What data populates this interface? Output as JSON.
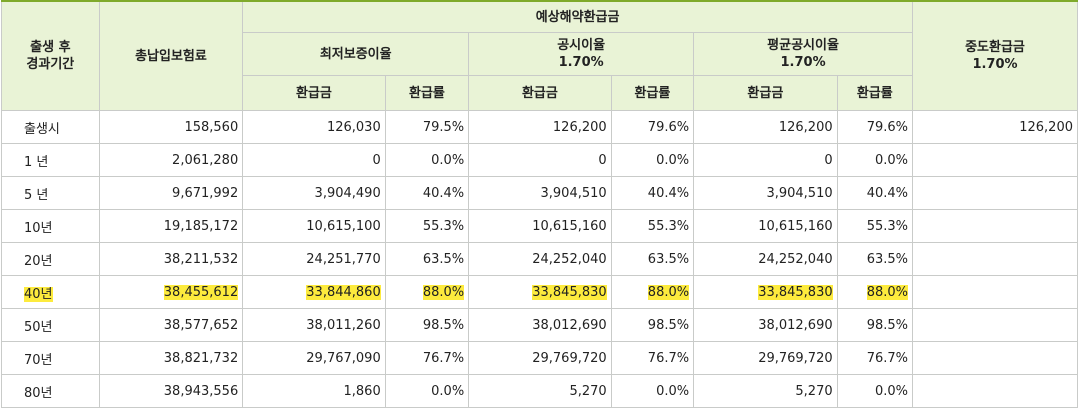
{
  "header": {
    "period": "출생 후\n경과기간",
    "total_premium": "총납입보험료",
    "expected_refund": "예상해약환급금",
    "min_rate": "최저보증이율",
    "public_rate": "공시이율\n1.70%",
    "avg_public_rate": "평균공시이율\n1.70%",
    "interim_refund": "중도환급금\n1.70%",
    "refund_amount": "환급금",
    "refund_rate": "환급률"
  },
  "highlight_color": "#fdeb3d",
  "rows": [
    {
      "period": "출생시",
      "premium": "158,560",
      "min_amt": "126,030",
      "min_rate": "79.5%",
      "pub_amt": "126,200",
      "pub_rate": "79.6%",
      "avg_amt": "126,200",
      "avg_rate": "79.6%",
      "interim": "126,200",
      "highlighted": false
    },
    {
      "period": "1 년",
      "premium": "2,061,280",
      "min_amt": "0",
      "min_rate": "0.0%",
      "pub_amt": "0",
      "pub_rate": "0.0%",
      "avg_amt": "0",
      "avg_rate": "0.0%",
      "interim": "",
      "highlighted": false
    },
    {
      "period": "5 년",
      "premium": "9,671,992",
      "min_amt": "3,904,490",
      "min_rate": "40.4%",
      "pub_amt": "3,904,510",
      "pub_rate": "40.4%",
      "avg_amt": "3,904,510",
      "avg_rate": "40.4%",
      "interim": "",
      "highlighted": false
    },
    {
      "period": "10년",
      "premium": "19,185,172",
      "min_amt": "10,615,100",
      "min_rate": "55.3%",
      "pub_amt": "10,615,160",
      "pub_rate": "55.3%",
      "avg_amt": "10,615,160",
      "avg_rate": "55.3%",
      "interim": "",
      "highlighted": false
    },
    {
      "period": "20년",
      "premium": "38,211,532",
      "min_amt": "24,251,770",
      "min_rate": "63.5%",
      "pub_amt": "24,252,040",
      "pub_rate": "63.5%",
      "avg_amt": "24,252,040",
      "avg_rate": "63.5%",
      "interim": "",
      "highlighted": false
    },
    {
      "period": "40년",
      "premium": "38,455,612",
      "min_amt": "33,844,860",
      "min_rate": "88.0%",
      "pub_amt": "33,845,830",
      "pub_rate": "88.0%",
      "avg_amt": "33,845,830",
      "avg_rate": "88.0%",
      "interim": "",
      "highlighted": true
    },
    {
      "period": "50년",
      "premium": "38,577,652",
      "min_amt": "38,011,260",
      "min_rate": "98.5%",
      "pub_amt": "38,012,690",
      "pub_rate": "98.5%",
      "avg_amt": "38,012,690",
      "avg_rate": "98.5%",
      "interim": "",
      "highlighted": false
    },
    {
      "period": "70년",
      "premium": "38,821,732",
      "min_amt": "29,767,090",
      "min_rate": "76.7%",
      "pub_amt": "29,769,720",
      "pub_rate": "76.7%",
      "avg_amt": "29,769,720",
      "avg_rate": "76.7%",
      "interim": "",
      "highlighted": false
    },
    {
      "period": "80년",
      "premium": "38,943,556",
      "min_amt": "1,860",
      "min_rate": "0.0%",
      "pub_amt": "5,270",
      "pub_rate": "0.0%",
      "avg_amt": "5,270",
      "avg_rate": "0.0%",
      "interim": "",
      "highlighted": false
    }
  ]
}
